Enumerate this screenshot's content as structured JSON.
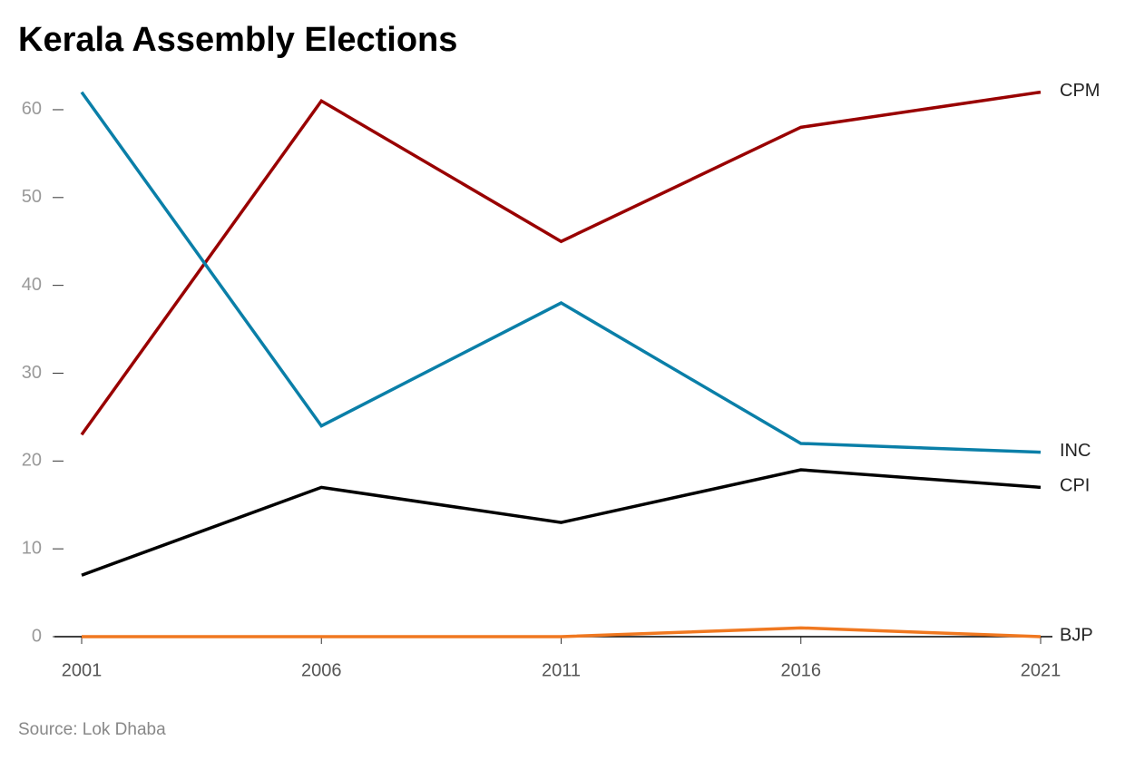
{
  "chart_data": {
    "type": "line",
    "title": "Kerala Assembly Elections",
    "source": "Source: Lok Dhaba",
    "x": [
      2001,
      2006,
      2011,
      2016,
      2021
    ],
    "xlim": [
      2001,
      2021
    ],
    "xticks": [
      2001,
      2006,
      2011,
      2016,
      2021
    ],
    "ylim": [
      0,
      62
    ],
    "yticks": [
      0,
      10,
      20,
      30,
      40,
      50,
      60
    ],
    "series": [
      {
        "name": "CPM",
        "color": "#990000",
        "values": [
          23,
          61,
          45,
          58,
          62
        ]
      },
      {
        "name": "INC",
        "color": "#0a7fa8",
        "values": [
          62,
          24,
          38,
          22,
          21
        ]
      },
      {
        "name": "CPI",
        "color": "#000000",
        "values": [
          7,
          17,
          13,
          19,
          17
        ]
      },
      {
        "name": "BJP",
        "color": "#f07820",
        "values": [
          0,
          0,
          0,
          1,
          0
        ]
      }
    ]
  }
}
